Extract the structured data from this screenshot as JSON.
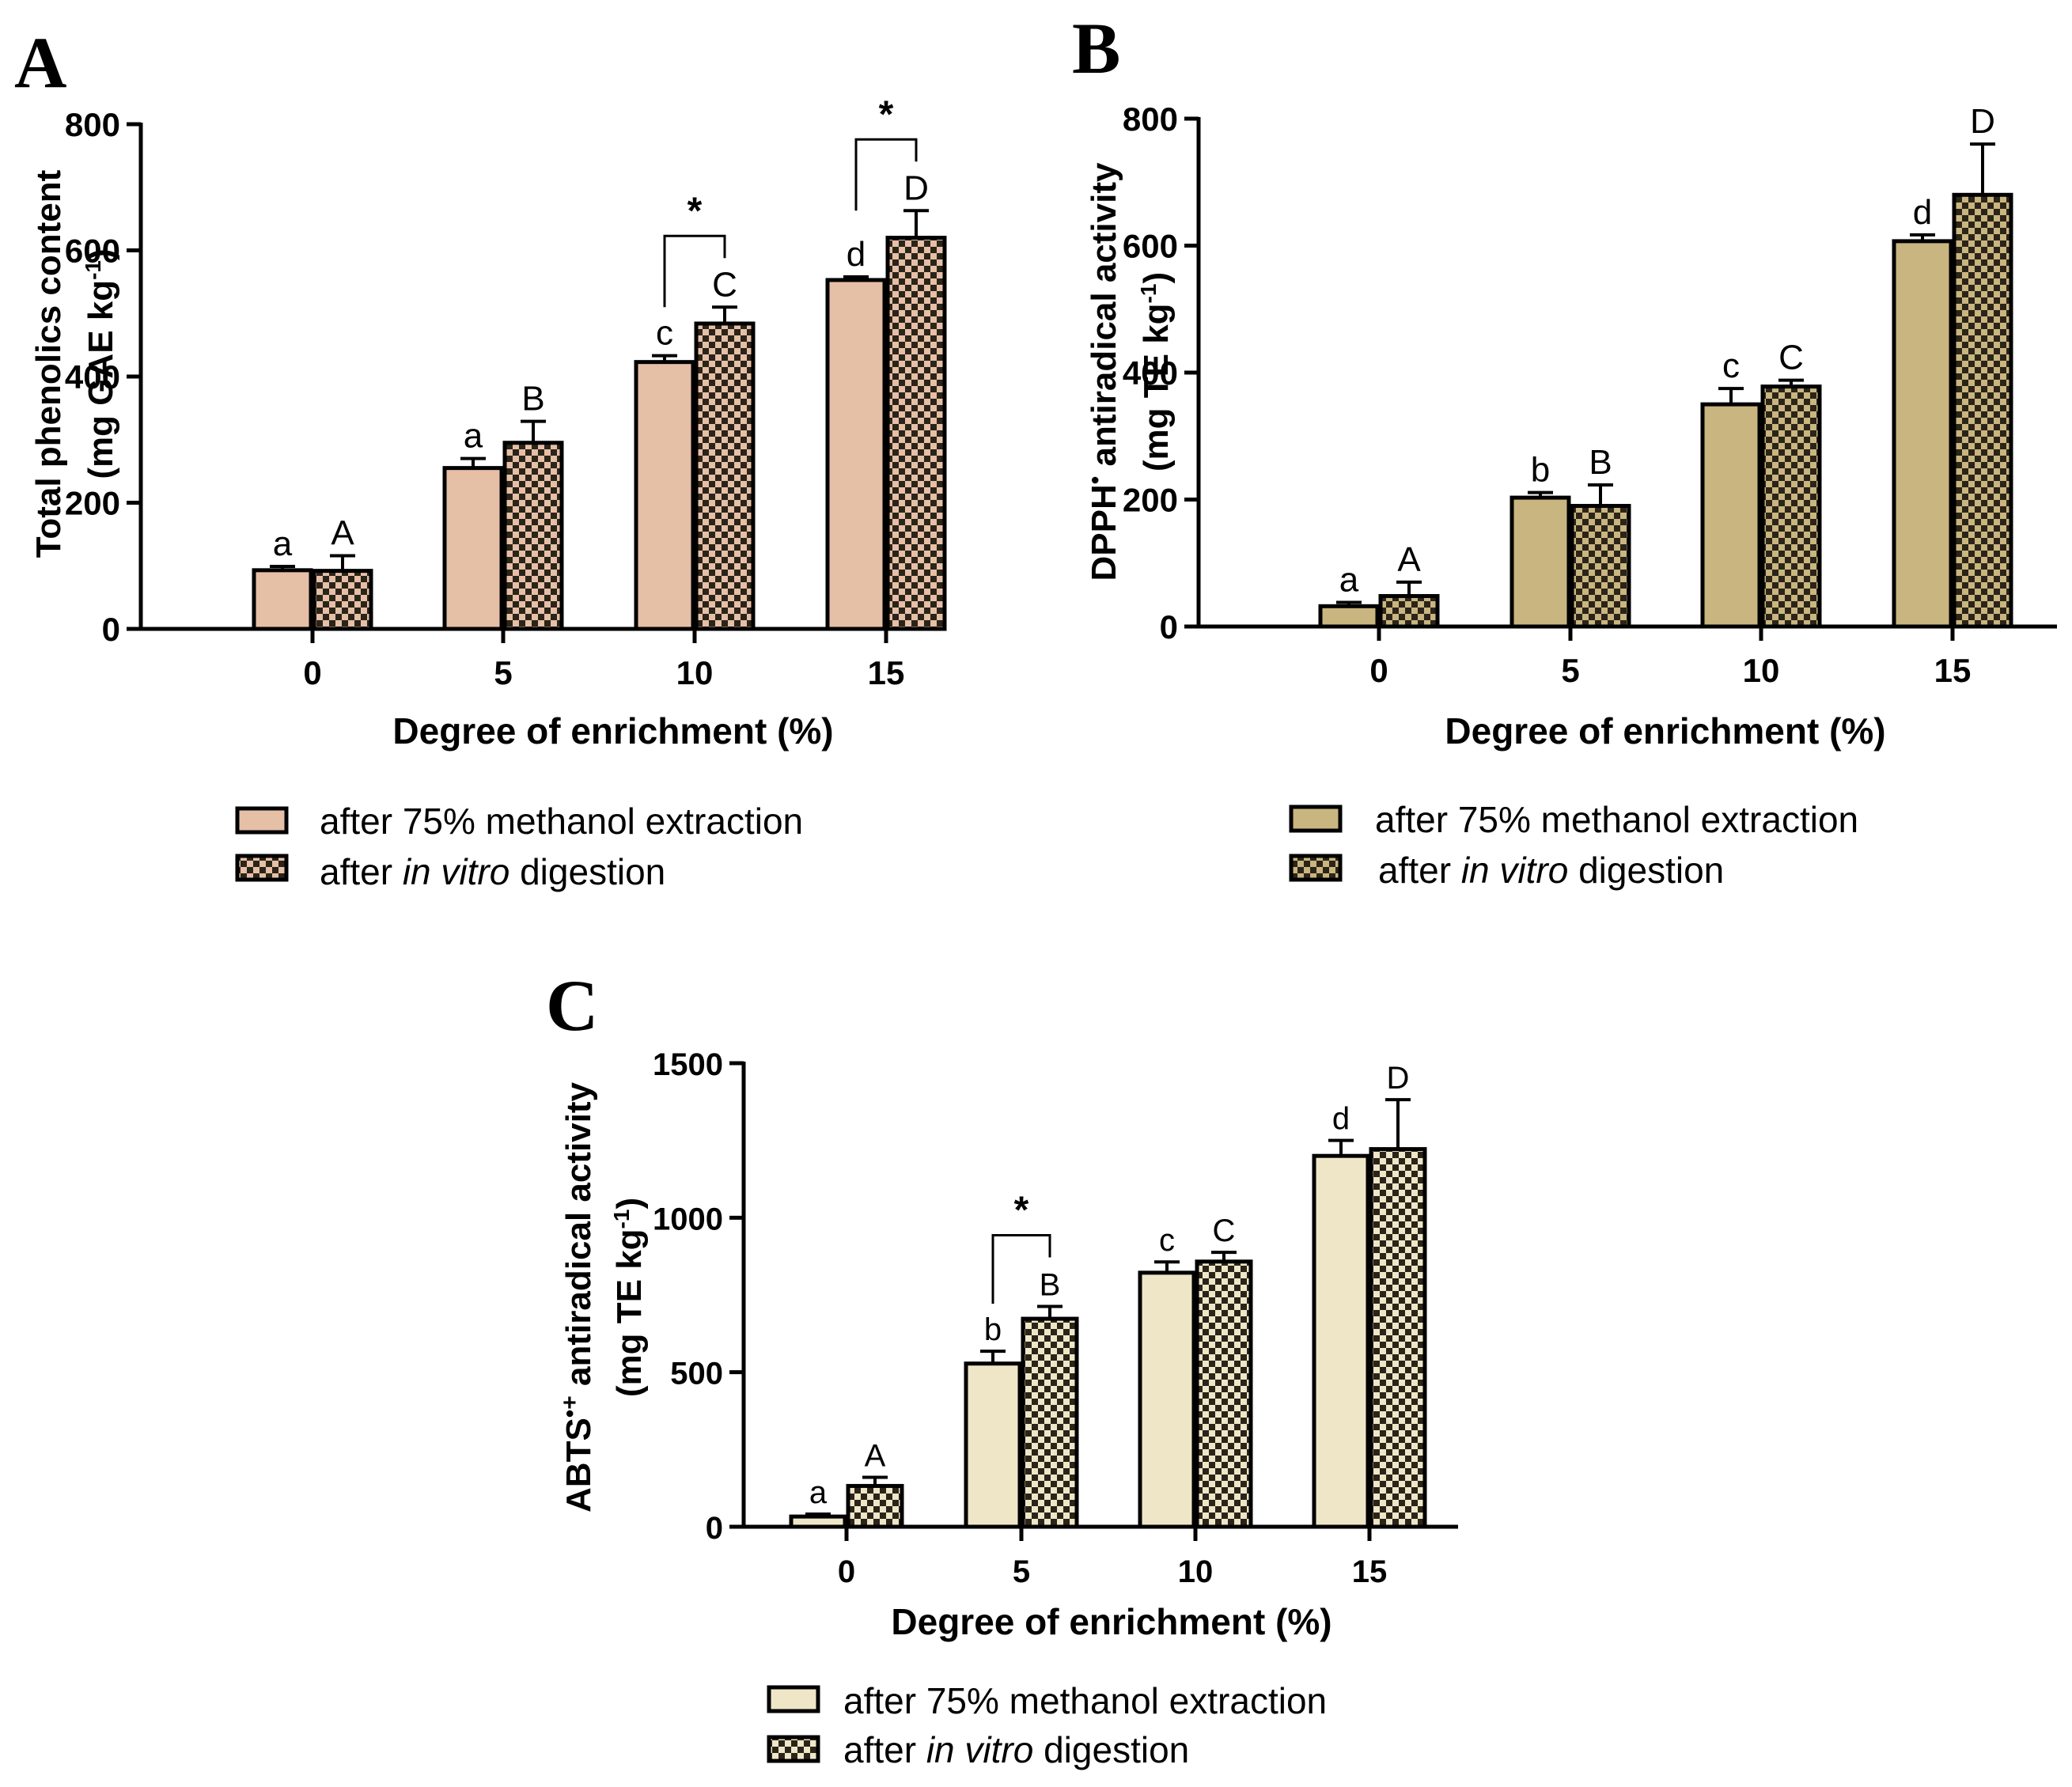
{
  "colors": {
    "A": "#e6bfa7",
    "B": "#c9b57f",
    "C": "#efe6c8",
    "check_dark": "#2b2418",
    "axis": "#000000"
  },
  "legend": {
    "series1_label": "after 75% methanol extraction",
    "series2_prefix": "after",
    "series2_italic": "in vitro",
    "series2_suffix": "digestion"
  },
  "chart_data": [
    {
      "id": "A",
      "panel_label": "A",
      "type": "bar",
      "title": "",
      "xlabel": "Degree of enrichment (%)",
      "ylabel_line1": "Total phenolics content",
      "ylabel_line2_pre": "(mg GAE kg",
      "ylabel_line2_sup": "-1",
      "ylabel_line2_post": ")",
      "categories": [
        "0",
        "5",
        "10",
        "15"
      ],
      "ylim": [
        0,
        800
      ],
      "yticks": [
        0,
        200,
        400,
        600,
        800
      ],
      "series": [
        {
          "name": "after 75% methanol extraction",
          "pattern": "solid",
          "values": [
            93,
            255,
            423,
            553
          ],
          "errors": [
            6,
            15,
            10,
            5
          ],
          "letters": [
            "a",
            "a",
            "c",
            "d"
          ]
        },
        {
          "name": "after in vitro digestion",
          "pattern": "checker",
          "values": [
            92,
            295,
            484,
            620
          ],
          "errors": [
            24,
            34,
            26,
            43
          ],
          "letters": [
            "A",
            "B",
            "C",
            "D"
          ]
        }
      ],
      "significance": [
        {
          "category": "10",
          "symbol": "*"
        },
        {
          "category": "15",
          "symbol": "*"
        }
      ]
    },
    {
      "id": "B",
      "panel_label": "B",
      "type": "bar",
      "title": "",
      "xlabel": "Degree of enrichment (%)",
      "ylabel_line1_pre": "DPPH",
      "ylabel_line1_sup": "•",
      "ylabel_line1_post": " antiradical activity",
      "ylabel_line2_pre": "(mg TE kg",
      "ylabel_line2_sup": "-1",
      "ylabel_line2_post": ")",
      "categories": [
        "0",
        "5",
        "10",
        "15"
      ],
      "ylim": [
        0,
        800
      ],
      "yticks": [
        0,
        200,
        400,
        600,
        800
      ],
      "series": [
        {
          "name": "after 75% methanol extraction",
          "pattern": "solid",
          "values": [
            32,
            203,
            350,
            607
          ],
          "errors": [
            6,
            8,
            25,
            10
          ],
          "letters": [
            "a",
            "b",
            "c",
            "d"
          ]
        },
        {
          "name": "after in vitro digestion",
          "pattern": "checker",
          "values": [
            48,
            190,
            378,
            680
          ],
          "errors": [
            22,
            33,
            10,
            80
          ],
          "letters": [
            "A",
            "B",
            "C",
            "D"
          ]
        }
      ],
      "significance": []
    },
    {
      "id": "C",
      "panel_label": "C",
      "type": "bar",
      "title": "",
      "xlabel": "Degree of enrichment (%)",
      "ylabel_line1_pre": "ABTS",
      "ylabel_line1_sup": "•+",
      "ylabel_line1_post": " antiradical activity",
      "ylabel_line2_pre": "(mg TE kg",
      "ylabel_line2_sup": "-1",
      "ylabel_line2_post": ")",
      "categories": [
        "0",
        "5",
        "10",
        "15"
      ],
      "ylim": [
        0,
        1500
      ],
      "yticks": [
        0,
        500,
        1000,
        1500
      ],
      "series": [
        {
          "name": "after 75% methanol extraction",
          "pattern": "solid",
          "values": [
            33,
            528,
            822,
            1200
          ],
          "errors": [
            8,
            40,
            35,
            50
          ],
          "letters": [
            "a",
            "b",
            "c",
            "d"
          ]
        },
        {
          "name": "after in vitro digestion",
          "pattern": "checker",
          "values": [
            132,
            673,
            858,
            1222
          ],
          "errors": [
            28,
            40,
            30,
            160
          ],
          "letters": [
            "A",
            "B",
            "C",
            "D"
          ]
        }
      ],
      "significance": [
        {
          "category": "5",
          "symbol": "*"
        }
      ]
    }
  ]
}
